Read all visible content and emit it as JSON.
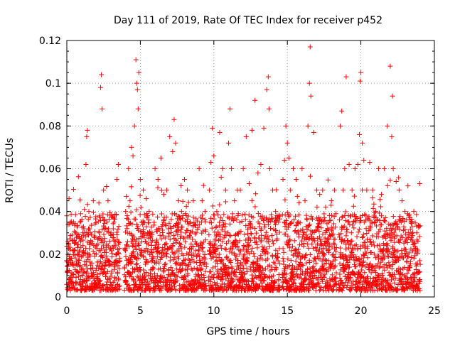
{
  "chart_data": {
    "type": "scatter",
    "title": "Day 111 of 2019, Rate Of TEC Index for receiver p452",
    "xlabel": "GPS time / hours",
    "ylabel": "ROTI / TECUs",
    "xlim": [
      0,
      25
    ],
    "ylim": [
      0,
      0.12
    ],
    "x_ticks": [
      0,
      5,
      10,
      15,
      20,
      25
    ],
    "x_tick_labels": [
      "0",
      "5",
      "10",
      "15",
      "20",
      "25"
    ],
    "y_ticks": [
      0,
      0.02,
      0.04,
      0.06,
      0.08,
      0.1,
      0.12
    ],
    "y_tick_labels": [
      "0",
      "0.02",
      "0.04",
      "0.06",
      "0.08",
      "0.1",
      "0.12"
    ],
    "grid": true,
    "marker": "+",
    "marker_color": "#ff0000",
    "data_gaps_hours": [
      [
        3.6,
        3.9
      ],
      [
        9.5,
        9.65
      ],
      [
        14.5,
        14.65
      ],
      [
        18.35,
        18.5
      ],
      [
        24.05,
        25
      ]
    ],
    "series": [
      {
        "name": "ROTI",
        "x": [
          0.05,
          0.1,
          0.15,
          0.2,
          0.3,
          0.4,
          0.5,
          0.6,
          0.7,
          0.8,
          0.9,
          1.0,
          1.1,
          1.2,
          1.3,
          1.35,
          1.4,
          1.5,
          1.6,
          1.8,
          2.0,
          2.2,
          2.3,
          2.35,
          2.4,
          2.5,
          2.6,
          2.8,
          3.0,
          3.2,
          3.4,
          3.5,
          4.0,
          4.1,
          4.2,
          4.3,
          4.4,
          4.5,
          4.6,
          4.7,
          4.75,
          4.8,
          4.85,
          4.9,
          5.0,
          5.1,
          5.2,
          5.4,
          5.6,
          5.8,
          6.0,
          6.2,
          6.4,
          6.6,
          6.8,
          7.0,
          7.2,
          7.3,
          7.4,
          7.6,
          7.8,
          8.0,
          8.2,
          8.4,
          8.6,
          8.8,
          9.0,
          9.2,
          9.4,
          9.7,
          9.8,
          9.9,
          10.0,
          10.2,
          10.4,
          10.5,
          10.6,
          10.8,
          11.0,
          11.1,
          11.2,
          11.4,
          11.6,
          11.8,
          12.0,
          12.2,
          12.4,
          12.6,
          12.8,
          13.0,
          13.2,
          13.4,
          13.6,
          13.7,
          13.75,
          13.8,
          14.0,
          14.2,
          14.4,
          14.7,
          14.8,
          14.9,
          15.0,
          15.1,
          15.2,
          15.4,
          15.6,
          15.8,
          16.0,
          16.2,
          16.4,
          16.5,
          16.55,
          16.6,
          16.8,
          17.0,
          17.2,
          17.4,
          17.6,
          17.8,
          18.0,
          18.2,
          18.6,
          18.7,
          18.8,
          18.9,
          19.0,
          19.2,
          19.4,
          19.6,
          19.8,
          19.9,
          19.95,
          20.0,
          20.1,
          20.2,
          20.4,
          20.6,
          20.8,
          21.0,
          21.2,
          21.4,
          21.6,
          21.8,
          22.0,
          22.1,
          22.15,
          22.2,
          22.4,
          22.6,
          22.8,
          23.0,
          23.2,
          23.4,
          23.6,
          23.8,
          24.0
        ],
        "y": [
          0.012,
          0.025,
          0.046,
          0.018,
          0.01,
          0.015,
          0.022,
          0.03,
          0.02,
          0.016,
          0.035,
          0.028,
          0.024,
          0.041,
          0.062,
          0.075,
          0.078,
          0.04,
          0.03,
          0.045,
          0.02,
          0.03,
          0.098,
          0.104,
          0.088,
          0.05,
          0.022,
          0.045,
          0.03,
          0.035,
          0.055,
          0.062,
          0.04,
          0.032,
          0.06,
          0.045,
          0.07,
          0.066,
          0.08,
          0.111,
          0.1,
          0.097,
          0.088,
          0.105,
          0.055,
          0.035,
          0.05,
          0.046,
          0.04,
          0.03,
          0.06,
          0.055,
          0.065,
          0.048,
          0.05,
          0.075,
          0.068,
          0.083,
          0.072,
          0.045,
          0.04,
          0.055,
          0.05,
          0.035,
          0.045,
          0.03,
          0.06,
          0.045,
          0.04,
          0.05,
          0.063,
          0.079,
          0.066,
          0.04,
          0.077,
          0.056,
          0.06,
          0.05,
          0.072,
          0.088,
          0.06,
          0.045,
          0.05,
          0.05,
          0.06,
          0.075,
          0.053,
          0.078,
          0.092,
          0.058,
          0.062,
          0.079,
          0.097,
          0.103,
          0.088,
          0.06,
          0.05,
          0.04,
          0.035,
          0.055,
          0.064,
          0.08,
          0.072,
          0.065,
          0.05,
          0.06,
          0.055,
          0.044,
          0.06,
          0.045,
          0.08,
          0.1,
          0.117,
          0.094,
          0.077,
          0.05,
          0.048,
          0.05,
          0.042,
          0.035,
          0.045,
          0.05,
          0.08,
          0.087,
          0.05,
          0.06,
          0.103,
          0.062,
          0.05,
          0.06,
          0.062,
          0.076,
          0.101,
          0.105,
          0.072,
          0.064,
          0.05,
          0.063,
          0.05,
          0.04,
          0.06,
          0.048,
          0.06,
          0.08,
          0.108,
          0.075,
          0.094,
          0.06,
          0.054,
          0.05,
          0.045,
          0.04,
          0.052,
          0.035,
          0.04,
          0.03,
          0.053
        ]
      }
    ]
  }
}
